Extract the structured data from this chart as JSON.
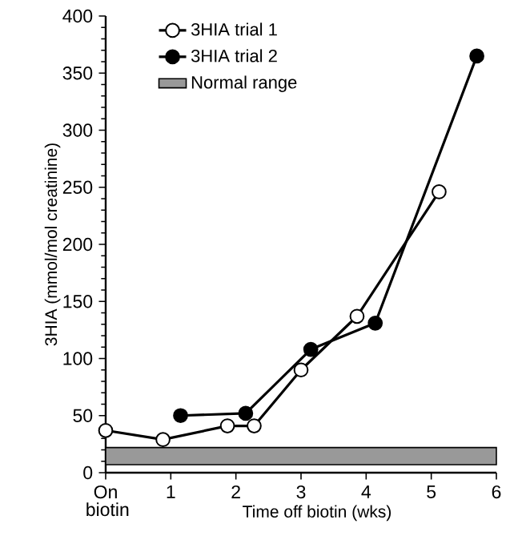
{
  "chart_data": {
    "type": "line",
    "xlabel": "Time off biotin (wks)",
    "ylabel": "3HIA (mmol/mol creatinine)",
    "xlim": [
      0,
      6
    ],
    "xticks": [
      {
        "value": 0,
        "label": "On biotin"
      },
      1,
      2,
      3,
      4,
      5,
      6
    ],
    "ylim": [
      0,
      400
    ],
    "yticks": [
      0,
      50,
      100,
      150,
      200,
      250,
      300,
      350,
      400
    ],
    "series": [
      {
        "name": "3HIA trial 1",
        "color": "#ffffff",
        "x": [
          0,
          0.88,
          1.87,
          2.28,
          3.0,
          3.86,
          5.12
        ],
        "values": [
          37,
          29,
          41,
          41,
          90,
          137,
          246
        ]
      },
      {
        "name": "3HIA trial 2",
        "color": "#000000",
        "x": [
          1.15,
          2.15,
          3.15,
          4.14,
          5.7
        ],
        "values": [
          50,
          52,
          108,
          131,
          365
        ]
      }
    ],
    "bands": [
      {
        "axis": "y",
        "from": 7,
        "to": 22,
        "label": "Normal range",
        "color": "#999999"
      }
    ],
    "marker": "circle",
    "line_style": "solid",
    "legend": "top left",
    "grid": false
  }
}
